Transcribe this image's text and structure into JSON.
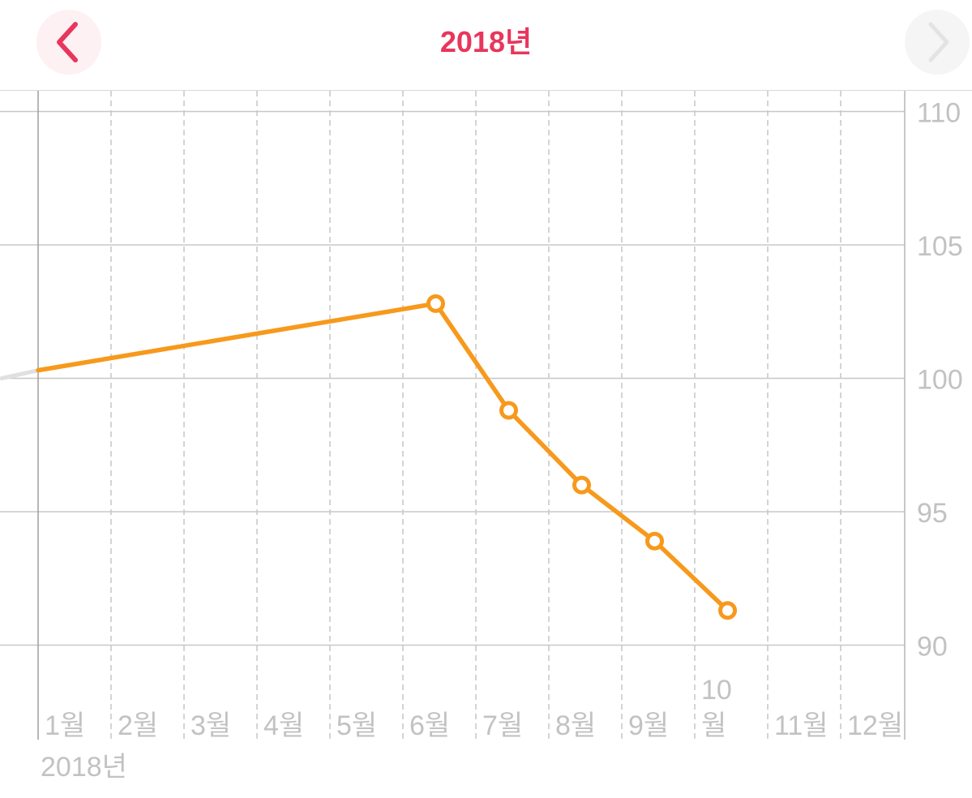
{
  "header": {
    "title": "2018년",
    "back_icon": "chevron-left-icon",
    "forward_icon": "chevron-right-icon"
  },
  "colors": {
    "accent": "#e8365d",
    "series": "#f7991c",
    "prior_series": "#e0e0e0",
    "grid_solid": "#c8c8c8",
    "grid_dashed": "#c6c6c6",
    "tick_label": "#c2c2c2",
    "disabled": "#e3e3e3"
  },
  "chart_data": {
    "type": "line",
    "title": "",
    "xlabel": "2018년",
    "ylabel": "",
    "x_tick_labels": [
      "1월",
      "2월",
      "3월",
      "4월",
      "5월",
      "6월",
      "7월",
      "8월",
      "9월",
      "10\n월",
      "11월",
      "12월"
    ],
    "y_ticks": [
      110,
      105,
      100,
      95,
      90
    ],
    "ylim": [
      88.3,
      110.7
    ],
    "xlim_months": [
      1,
      12.9
    ],
    "y_axis_position": "right",
    "grid": true,
    "series": [
      {
        "points": [
          {
            "x": 1.0,
            "y": 100.3
          },
          {
            "x": 6.45,
            "y": 102.8
          },
          {
            "x": 7.45,
            "y": 98.8
          },
          {
            "x": 8.45,
            "y": 96.0
          },
          {
            "x": 9.45,
            "y": 93.9
          },
          {
            "x": 10.45,
            "y": 91.3
          }
        ],
        "markers": [
          false,
          true,
          true,
          true,
          true,
          true
        ]
      }
    ],
    "prior_segment": {
      "from": {
        "x": 0.5,
        "y": 100.0
      },
      "to": {
        "x": 1.0,
        "y": 100.3
      }
    }
  }
}
